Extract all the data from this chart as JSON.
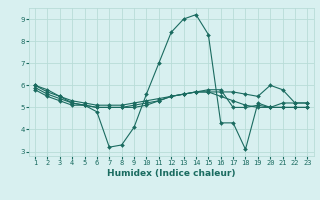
{
  "xlabel": "Humidex (Indice chaleur)",
  "bg_color": "#d8f0f0",
  "grid_color": "#b8dcd8",
  "line_color": "#1a6b60",
  "x": [
    1,
    2,
    3,
    4,
    5,
    6,
    7,
    8,
    9,
    10,
    11,
    12,
    13,
    14,
    15,
    16,
    17,
    18,
    19,
    20,
    21,
    22,
    23
  ],
  "series": [
    [
      6.0,
      5.7,
      5.5,
      5.2,
      5.1,
      4.8,
      3.2,
      3.3,
      4.1,
      5.6,
      7.0,
      8.4,
      9.0,
      9.2,
      8.3,
      4.3,
      4.3,
      3.1,
      5.2,
      5.0,
      5.0,
      5.0,
      5.0
    ],
    [
      5.8,
      5.5,
      5.3,
      5.1,
      5.1,
      5.0,
      5.0,
      5.0,
      5.0,
      5.1,
      5.3,
      5.5,
      5.6,
      5.7,
      5.7,
      5.5,
      5.3,
      5.1,
      5.0,
      5.0,
      5.0,
      5.0,
      5.0
    ],
    [
      6.0,
      5.8,
      5.5,
      5.3,
      5.2,
      5.1,
      5.1,
      5.1,
      5.2,
      5.3,
      5.4,
      5.5,
      5.6,
      5.7,
      5.7,
      5.7,
      5.7,
      5.6,
      5.5,
      6.0,
      5.8,
      5.2,
      5.2
    ],
    [
      5.9,
      5.6,
      5.4,
      5.2,
      5.1,
      5.0,
      5.0,
      5.0,
      5.1,
      5.2,
      5.3,
      5.5,
      5.6,
      5.7,
      5.8,
      5.8,
      5.0,
      5.0,
      5.1,
      5.0,
      5.2,
      5.2,
      5.2
    ]
  ],
  "xlim": [
    0.5,
    23.5
  ],
  "ylim": [
    2.8,
    9.5
  ],
  "yticks": [
    3,
    4,
    5,
    6,
    7,
    8,
    9
  ],
  "xticks": [
    1,
    2,
    3,
    4,
    5,
    6,
    7,
    8,
    9,
    10,
    11,
    12,
    13,
    14,
    15,
    16,
    17,
    18,
    19,
    20,
    21,
    22,
    23
  ],
  "tick_fontsize": 5.0,
  "xlabel_fontsize": 6.5
}
